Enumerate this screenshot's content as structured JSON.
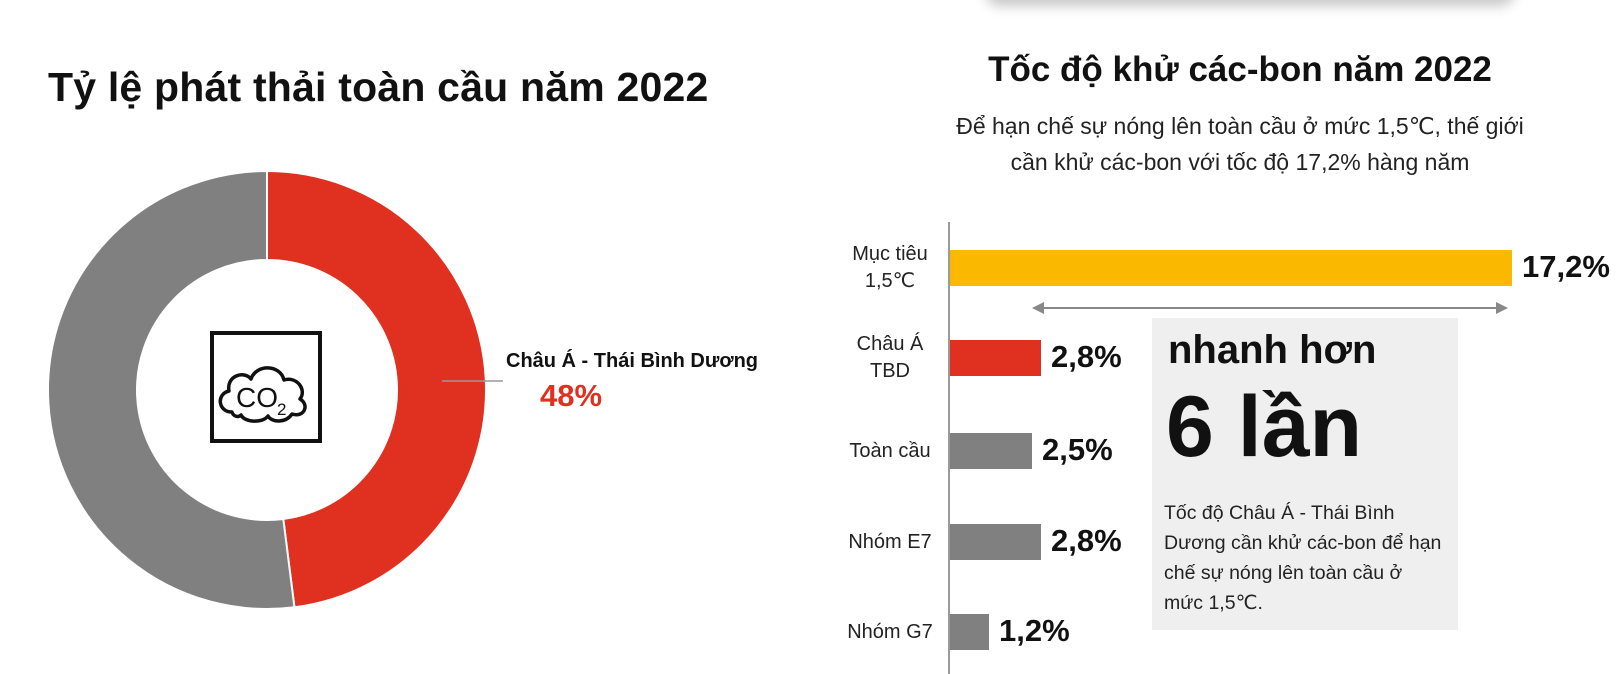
{
  "colors": {
    "asia_pacific": "#e03020",
    "rest_of_world": "#808080",
    "target": "#fbb800",
    "other_bars": "#808080",
    "callout_bg": "#efefef"
  },
  "icons": {
    "center": "co2-cloud-icon"
  },
  "chart_data": [
    {
      "type": "pie",
      "title": "Tỷ lệ phát thải toàn cầu năm 2022",
      "center_icon_text": "CO",
      "center_icon_subscript": "2",
      "slices": [
        {
          "name": "Châu Á - Thái Bình Dương",
          "value": 48,
          "value_label": "48%",
          "color": "#e03020"
        },
        {
          "name": "",
          "value": 52,
          "color": "#808080"
        }
      ]
    },
    {
      "type": "bar",
      "orientation": "horizontal",
      "title": "Tốc độ khử các-bon năm 2022",
      "subtitle_lines": [
        "Để hạn chế sự nóng lên toàn cầu ở mức 1,5℃, thế giới",
        "cần khử các-bon với tốc độ 17,2% hàng năm"
      ],
      "categories": [
        [
          "Mục tiêu",
          "1,5℃"
        ],
        [
          "Châu Á",
          "TBD"
        ],
        [
          "Toàn cầu"
        ],
        [
          "Nhóm E7"
        ],
        [
          "Nhóm G7"
        ]
      ],
      "values": [
        17.2,
        2.8,
        2.5,
        2.8,
        1.2
      ],
      "value_labels": [
        "17,2%",
        "2,8%",
        "2,5%",
        "2,8%",
        "1,2%"
      ],
      "bar_colors": [
        "#fbb800",
        "#e03020",
        "#808080",
        "#808080",
        "#808080"
      ],
      "xlim": [
        0,
        17.2
      ]
    }
  ],
  "callout": {
    "line1": "nhanh hơn",
    "line2": "6 lần",
    "text": "Tốc độ Châu Á - Thái Bình Dương cần khử các-bon để hạn chế sự nóng lên toàn cầu ở mức 1,5℃."
  }
}
